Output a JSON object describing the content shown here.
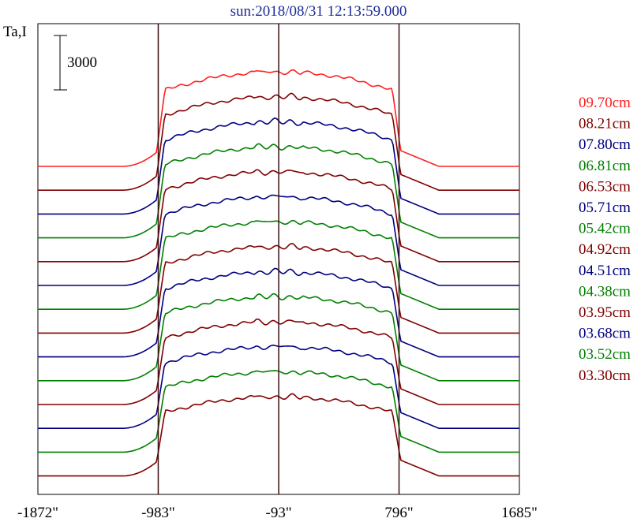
{
  "chart_data": {
    "type": "line",
    "title": "sun:2018/08/31 12:13:59.000",
    "ylabel": "Ta,I",
    "scale_bar_label": "3000",
    "x_ticks": [
      "-1872\"",
      "-983\"",
      "-93\"",
      "796\"",
      "1685\""
    ],
    "x_tick_values": [
      -1872,
      -983,
      -93,
      796,
      1685
    ],
    "xlim": [
      -1872,
      1685
    ],
    "vertical_markers": [
      -983,
      -93,
      796
    ],
    "series": [
      {
        "name": "09.70cm",
        "color": "#ff2020"
      },
      {
        "name": "08.21cm",
        "color": "#800000"
      },
      {
        "name": "07.80cm",
        "color": "#000080"
      },
      {
        "name": "06.81cm",
        "color": "#008000"
      },
      {
        "name": "06.53cm",
        "color": "#800000"
      },
      {
        "name": "05.71cm",
        "color": "#000080"
      },
      {
        "name": "05.42cm",
        "color": "#008000"
      },
      {
        "name": "04.92cm",
        "color": "#800000"
      },
      {
        "name": "04.51cm",
        "color": "#000080"
      },
      {
        "name": "04.38cm",
        "color": "#008000"
      },
      {
        "name": "03.95cm",
        "color": "#800000"
      },
      {
        "name": "03.68cm",
        "color": "#000080"
      },
      {
        "name": "03.52cm",
        "color": "#008000"
      },
      {
        "name": "03.30cm",
        "color": "#800000"
      }
    ]
  }
}
